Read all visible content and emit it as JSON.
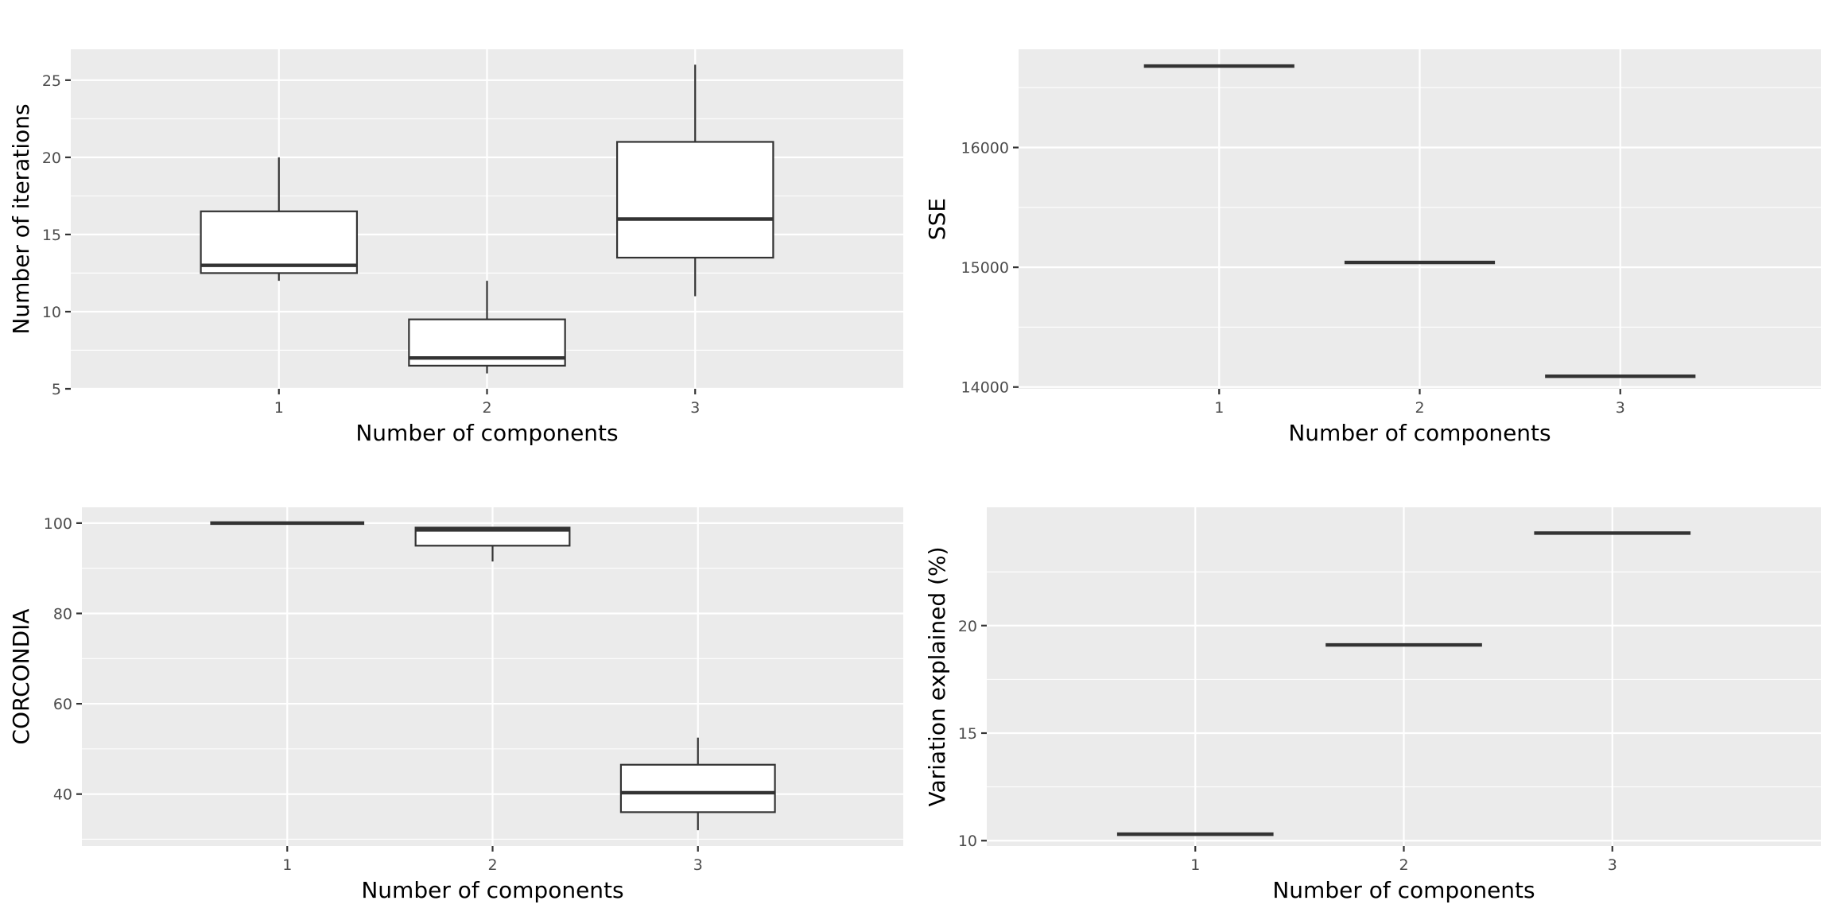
{
  "chart_data": [
    {
      "type": "boxplot",
      "xlabel": "Number of components",
      "ylabel": "Number of iterations",
      "categories": [
        "1",
        "2",
        "3"
      ],
      "ylim": [
        5,
        27
      ],
      "yticks": [
        5,
        10,
        15,
        20,
        25
      ],
      "grid": true,
      "boxes": [
        {
          "x": "1",
          "min": 12,
          "q1": 12.5,
          "median": 13,
          "q3": 16.5,
          "max": 20
        },
        {
          "x": "2",
          "min": 6,
          "q1": 6.5,
          "median": 7,
          "q3": 9.5,
          "max": 12
        },
        {
          "x": "3",
          "min": 11,
          "q1": 13.5,
          "median": 16,
          "q3": 21,
          "max": 26
        }
      ]
    },
    {
      "type": "boxplot",
      "xlabel": "Number of components",
      "ylabel": "SSE",
      "categories": [
        "1",
        "2",
        "3"
      ],
      "ylim": [
        13985,
        16820
      ],
      "yticks": [
        14000,
        15000,
        16000
      ],
      "grid": true,
      "boxes": [
        {
          "x": "1",
          "min": 16680,
          "q1": 16680,
          "median": 16680,
          "q3": 16680,
          "max": 16680
        },
        {
          "x": "2",
          "min": 15040,
          "q1": 15040,
          "median": 15040,
          "q3": 15040,
          "max": 15040
        },
        {
          "x": "3",
          "min": 14090,
          "q1": 14090,
          "median": 14090,
          "q3": 14090,
          "max": 14090
        }
      ]
    },
    {
      "type": "boxplot",
      "xlabel": "Number of components",
      "ylabel": "CORCONDIA",
      "categories": [
        "1",
        "2",
        "3"
      ],
      "ylim": [
        28.5,
        103.5
      ],
      "yticks": [
        40,
        60,
        80,
        100
      ],
      "grid": true,
      "boxes": [
        {
          "x": "1",
          "min": 100,
          "q1": 100,
          "median": 100,
          "q3": 100,
          "max": 100
        },
        {
          "x": "2",
          "min": 91.5,
          "q1": 95,
          "median": 98.5,
          "q3": 99,
          "max": 99
        },
        {
          "x": "3",
          "min": 32,
          "q1": 36,
          "median": 40.3,
          "q3": 46.5,
          "max": 52.5
        }
      ]
    },
    {
      "type": "boxplot",
      "xlabel": "Number of components",
      "ylabel": "Variation explained (%)",
      "categories": [
        "1",
        "2",
        "3"
      ],
      "ylim": [
        9.75,
        25.5
      ],
      "yticks": [
        10,
        15,
        20
      ],
      "grid": true,
      "boxes": [
        {
          "x": "1",
          "min": 10.3,
          "q1": 10.3,
          "median": 10.3,
          "q3": 10.3,
          "max": 10.3
        },
        {
          "x": "2",
          "min": 19.1,
          "q1": 19.1,
          "median": 19.1,
          "q3": 19.1,
          "max": 19.1
        },
        {
          "x": "3",
          "min": 24.3,
          "q1": 24.3,
          "median": 24.3,
          "q3": 24.3,
          "max": 24.3
        }
      ]
    }
  ]
}
